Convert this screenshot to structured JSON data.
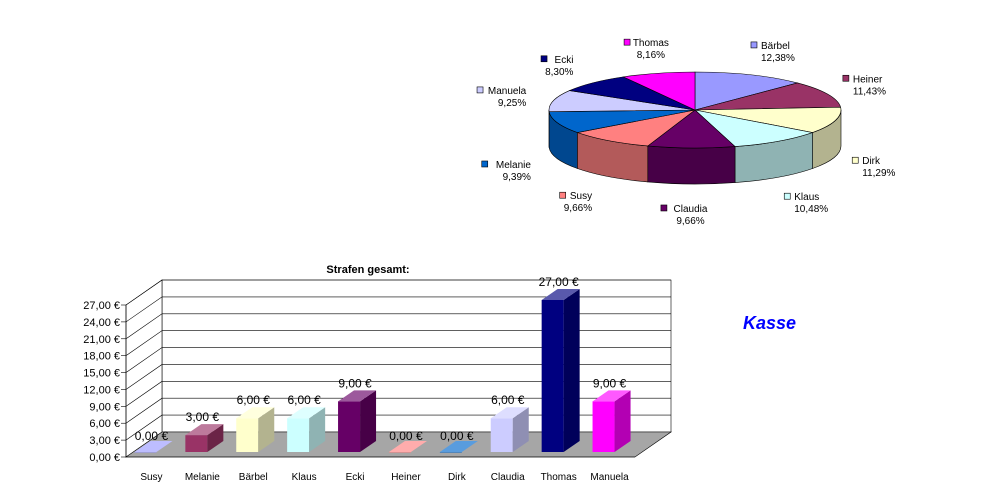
{
  "kasse_label": "Kasse",
  "chart_data": [
    {
      "type": "pie",
      "title": "",
      "legend_labels": true,
      "slices": [
        {
          "name": "Bärbel",
          "label": "12,38%",
          "value": 12.38,
          "color": "#9999ff"
        },
        {
          "name": "Heiner",
          "label": "11,43%",
          "value": 11.43,
          "color": "#993366"
        },
        {
          "name": "Dirk",
          "label": "11,29%",
          "value": 11.29,
          "color": "#ffffcc"
        },
        {
          "name": "Klaus",
          "label": "10,48%",
          "value": 10.48,
          "color": "#ccffff"
        },
        {
          "name": "Claudia",
          "label": "9,66%",
          "value": 9.66,
          "color": "#660066"
        },
        {
          "name": "Susy",
          "label": "9,66%",
          "value": 9.66,
          "color": "#ff8080"
        },
        {
          "name": "Melanie",
          "label": "9,39%",
          "value": 9.39,
          "color": "#0066cc"
        },
        {
          "name": "Manuela",
          "label": "9,25%",
          "value": 9.25,
          "color": "#ccccff"
        },
        {
          "name": "Ecki",
          "label": "8,30%",
          "value": 8.3,
          "color": "#000080"
        },
        {
          "name": "Thomas",
          "label": "8,16%",
          "value": 8.16,
          "color": "#ff00ff"
        }
      ]
    },
    {
      "type": "bar",
      "title": "Strafen gesamt:",
      "categories": [
        "Susy",
        "Melanie",
        "Bärbel",
        "Klaus",
        "Ecki",
        "Heiner",
        "Dirk",
        "Claudia",
        "Thomas",
        "Manuela"
      ],
      "values": [
        0,
        3,
        6,
        6,
        9,
        0,
        0,
        6,
        27,
        9
      ],
      "value_labels": [
        "0,00 €",
        "3,00 €",
        "6,00 €",
        "6,00 €",
        "9,00 €",
        "0,00 €",
        "0,00 €",
        "6,00 €",
        "27,00 €",
        "9,00 €"
      ],
      "colors": [
        "#9999ff",
        "#993366",
        "#ffffcc",
        "#ccffff",
        "#660066",
        "#ff8080",
        "#0066cc",
        "#ccccff",
        "#000080",
        "#ff00ff"
      ],
      "ylim": [
        0,
        27
      ],
      "yticks": [
        0,
        3,
        6,
        9,
        12,
        15,
        18,
        21,
        24,
        27
      ],
      "ytick_labels": [
        "0,00 €",
        "3,00 €",
        "6,00 €",
        "9,00 €",
        "12,00 €",
        "15,00 €",
        "18,00 €",
        "21,00 €",
        "24,00 €",
        "27,00 €"
      ],
      "grid": true,
      "xlabel": "",
      "ylabel": ""
    }
  ]
}
